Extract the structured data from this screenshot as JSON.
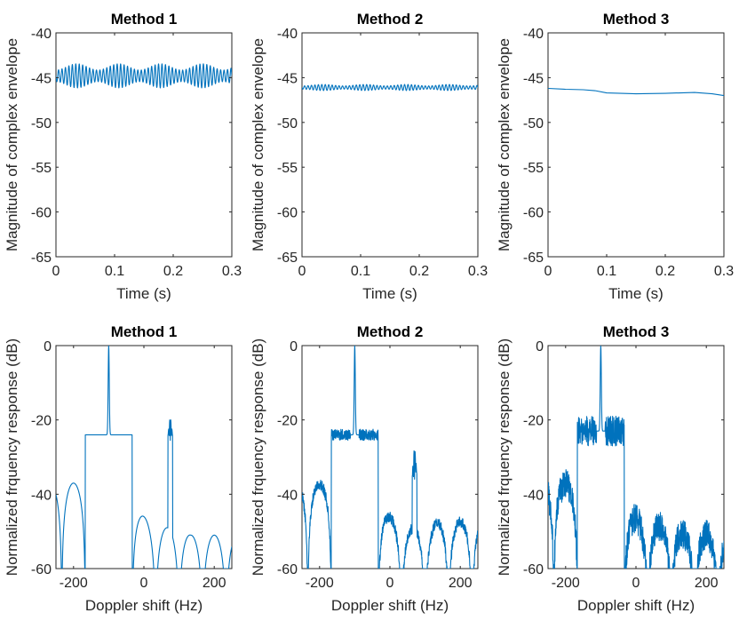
{
  "chart_data": [
    {
      "type": "line",
      "title": "Method 1",
      "xlabel": "Time (s)",
      "ylabel": "Magnitude of complex envelope",
      "xlim": [
        0,
        0.3
      ],
      "ylim": [
        -65,
        -40
      ],
      "xticks": [
        0,
        0.1,
        0.2,
        0.3
      ],
      "xtick_labels": [
        "0",
        "0.1",
        "0.2",
        "0.3"
      ],
      "yticks": [
        -65,
        -60,
        -55,
        -50,
        -45,
        -40
      ],
      "ytick_labels": [
        "-65",
        "-60",
        "-55",
        "-50",
        "-45",
        "-40"
      ],
      "series": [
        {
          "name": "envelope",
          "color": "#0072bd",
          "model": "beat",
          "base": -44.8,
          "carrier_hz": 170,
          "components": [
            [
              0.35,
              14,
              0
            ],
            [
              1.0,
              0,
              0.5
            ]
          ]
        }
      ]
    },
    {
      "type": "line",
      "title": "Method 2",
      "xlabel": "Time (s)",
      "ylabel": "Magnitude of complex envelope",
      "xlim": [
        0,
        0.3
      ],
      "ylim": [
        -65,
        -40
      ],
      "xticks": [
        0,
        0.1,
        0.2,
        0.3
      ],
      "xtick_labels": [
        "0",
        "0.1",
        "0.2",
        "0.3"
      ],
      "yticks": [
        -65,
        -60,
        -55,
        -50,
        -45,
        -40
      ],
      "ytick_labels": [
        "-65",
        "-60",
        "-55",
        "-50",
        "-45",
        "-40"
      ],
      "series": [
        {
          "name": "envelope",
          "color": "#0072bd",
          "model": "beat",
          "base": -46.1,
          "carrier_hz": 170,
          "components": [
            [
              0.08,
              14,
              0
            ],
            [
              0.26,
              0,
              0.5
            ]
          ]
        }
      ]
    },
    {
      "type": "line",
      "title": "Method 3",
      "xlabel": "Time (s)",
      "ylabel": "Magnitude of complex envelope",
      "xlim": [
        0,
        0.3
      ],
      "ylim": [
        -65,
        -40
      ],
      "xticks": [
        0,
        0.1,
        0.2,
        0.3
      ],
      "xtick_labels": [
        "0",
        "0.1",
        "0.2",
        "0.3"
      ],
      "yticks": [
        -65,
        -60,
        -55,
        -50,
        -45,
        -40
      ],
      "ytick_labels": [
        "-65",
        "-60",
        "-55",
        "-50",
        "-45",
        "-40"
      ],
      "series": [
        {
          "name": "envelope",
          "color": "#0072bd",
          "model": "points",
          "x": [
            0,
            0.03,
            0.06,
            0.08,
            0.1,
            0.15,
            0.2,
            0.25,
            0.28,
            0.3
          ],
          "y": [
            -46.2,
            -46.3,
            -46.35,
            -46.45,
            -46.7,
            -46.8,
            -46.75,
            -46.65,
            -46.8,
            -47.0
          ]
        }
      ]
    },
    {
      "type": "line",
      "title": "Method 1",
      "xlabel": "Doppler shift (Hz)",
      "ylabel": "Normalized frquency response (dB)",
      "xlim": [
        -250,
        250
      ],
      "ylim": [
        -60,
        0
      ],
      "xticks": [
        -200,
        0,
        200
      ],
      "xtick_labels": [
        "-200",
        "0",
        "200"
      ],
      "yticks": [
        -60,
        -40,
        -20,
        0
      ],
      "ytick_labels": [
        "-60",
        "-40",
        "-20",
        "0"
      ],
      "series": [
        {
          "name": "spectrum",
          "color": "#0072bd",
          "model": "spectrum",
          "main_hz": -100,
          "null_spacing_hz": 66.7,
          "main_peak_db": 0,
          "lobe_floor_db": -24,
          "noise_db": 0,
          "lobes": [
            [
              -233,
              -41.5
            ],
            [
              -167,
              -37
            ],
            [
              -33,
              -37
            ],
            [
              33,
              -41
            ],
            [
              133,
              -48.5
            ],
            [
              200,
              -49.5
            ],
            [
              233,
              -51
            ]
          ],
          "tone": {
            "hz": 75,
            "db": -19.5
          },
          "tone_envelope_db": -24
        }
      ]
    },
    {
      "type": "line",
      "title": "Method 2",
      "xlabel": "Doppler shift (Hz)",
      "ylabel": "Normalized frquency response (dB)",
      "xlim": [
        -250,
        250
      ],
      "ylim": [
        -60,
        0
      ],
      "xticks": [
        -200,
        0,
        200
      ],
      "xtick_labels": [
        "-200",
        "0",
        "200"
      ],
      "yticks": [
        -60,
        -40,
        -20,
        0
      ],
      "ytick_labels": [
        "-60",
        "-40",
        "-20",
        "0"
      ],
      "series": [
        {
          "name": "spectrum",
          "color": "#0072bd",
          "model": "spectrum",
          "main_hz": -100,
          "null_spacing_hz": 66.7,
          "main_peak_db": 0,
          "lobe_floor_db": -24,
          "noise_db": 1.5,
          "lobes": [
            [
              -233,
              -42
            ],
            [
              -167,
              -37
            ],
            [
              -33,
              -37.5
            ],
            [
              33,
              -41.5
            ],
            [
              133,
              -48.5
            ],
            [
              200,
              -50
            ],
            [
              233,
              -47.5
            ]
          ],
          "tone": {
            "hz": 70,
            "db": -29
          },
          "tone_envelope_db": -35
        }
      ]
    },
    {
      "type": "line",
      "title": "Method 3",
      "xlabel": "Doppler shift (Hz)",
      "ylabel": "Normalized frquency response (dB)",
      "xlim": [
        -250,
        250
      ],
      "ylim": [
        -60,
        0
      ],
      "xticks": [
        -200,
        0,
        200
      ],
      "xtick_labels": [
        "-200",
        "0",
        "200"
      ],
      "yticks": [
        -60,
        -40,
        -20,
        0
      ],
      "ytick_labels": [
        "-60",
        "-40",
        "-20",
        "0"
      ],
      "series": [
        {
          "name": "spectrum",
          "color": "#0072bd",
          "model": "spectrum",
          "main_hz": -100,
          "null_spacing_hz": 66.7,
          "main_peak_db": 0,
          "lobe_floor_db": -23,
          "noise_db": 4,
          "lobes": [
            [
              -233,
              -42
            ],
            [
              -167,
              -37
            ],
            [
              -33,
              -37.5
            ],
            [
              33,
              -44
            ],
            [
              133,
              -48
            ],
            [
              200,
              -49
            ],
            [
              233,
              -51
            ]
          ],
          "tone": null,
          "tone_envelope_db": -60
        }
      ]
    }
  ]
}
